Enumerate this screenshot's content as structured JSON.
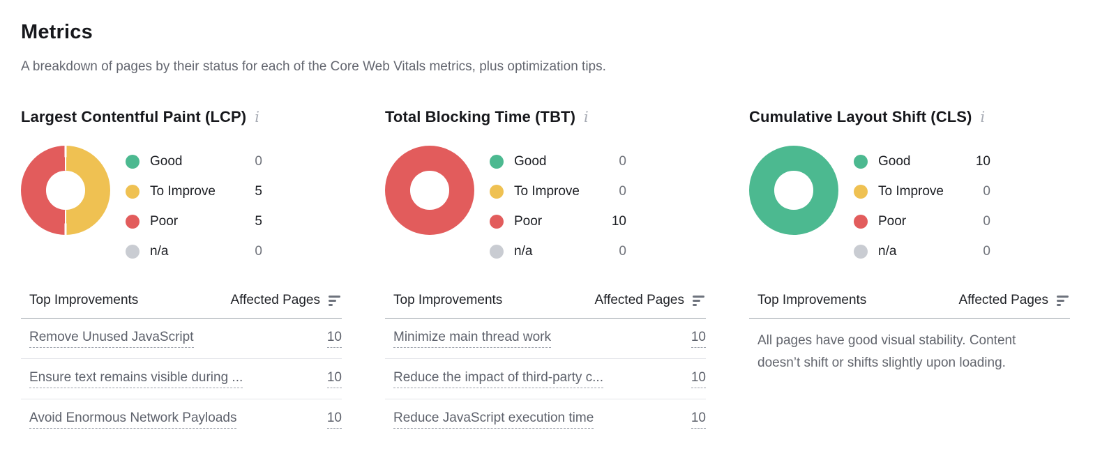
{
  "header": {
    "title": "Metrics",
    "subtitle": "A breakdown of pages by their status for each of the Core Web Vitals metrics, plus optimization tips."
  },
  "icons": {
    "info": "i",
    "sort": "sort-descending-bars"
  },
  "table_header": {
    "improvements": "Top Improvements",
    "affected_pages": "Affected Pages"
  },
  "colors": {
    "good": "#4CB990",
    "to_improve": "#EFC152",
    "poor": "#E25C5C",
    "na": "#C9CCD2"
  },
  "metrics": [
    {
      "title": "Largest Contentful Paint (LCP)",
      "chart_type": "donut",
      "legend": [
        {
          "label": "Good",
          "value": "0",
          "color": "#4CB990"
        },
        {
          "label": "To Improve",
          "value": "5",
          "color": "#EFC152"
        },
        {
          "label": "Poor",
          "value": "5",
          "color": "#E25C5C"
        },
        {
          "label": "n/a",
          "value": "0",
          "color": "#C9CCD2"
        }
      ],
      "improvements": [
        {
          "label": "Remove Unused JavaScript",
          "pages": "10"
        },
        {
          "label": "Ensure text remains visible during ...",
          "pages": "10"
        },
        {
          "label": "Avoid Enormous Network Payloads",
          "pages": "10"
        }
      ]
    },
    {
      "title": "Total Blocking Time (TBT)",
      "chart_type": "donut",
      "legend": [
        {
          "label": "Good",
          "value": "0",
          "color": "#4CB990"
        },
        {
          "label": "To Improve",
          "value": "0",
          "color": "#EFC152"
        },
        {
          "label": "Poor",
          "value": "10",
          "color": "#E25C5C"
        },
        {
          "label": "n/a",
          "value": "0",
          "color": "#C9CCD2"
        }
      ],
      "improvements": [
        {
          "label": "Minimize main thread work",
          "pages": "10"
        },
        {
          "label": "Reduce the impact of third-party c...",
          "pages": "10"
        },
        {
          "label": "Reduce JavaScript execution time",
          "pages": "10"
        }
      ]
    },
    {
      "title": "Cumulative Layout Shift (CLS)",
      "chart_type": "donut",
      "legend": [
        {
          "label": "Good",
          "value": "10",
          "color": "#4CB990"
        },
        {
          "label": "To Improve",
          "value": "0",
          "color": "#EFC152"
        },
        {
          "label": "Poor",
          "value": "0",
          "color": "#E25C5C"
        },
        {
          "label": "n/a",
          "value": "0",
          "color": "#C9CCD2"
        }
      ],
      "note": "All pages have good visual stability. Content doesn’t shift or shifts slightly upon loading."
    }
  ]
}
